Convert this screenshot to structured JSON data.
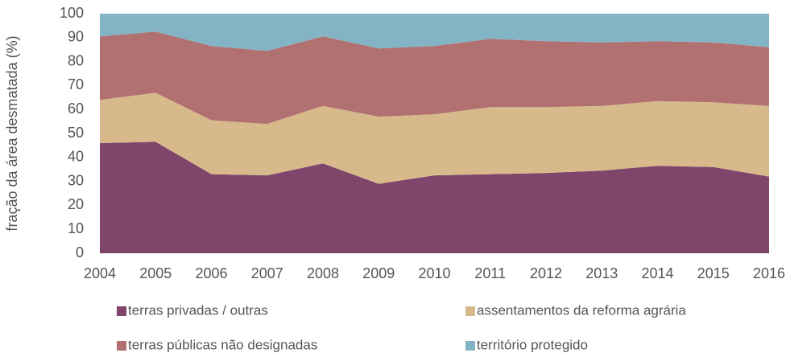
{
  "chart_data": {
    "type": "stacked_area",
    "y_label": "fração da área desmatada (%)",
    "categories": [
      "2004",
      "2005",
      "2006",
      "2007",
      "2008",
      "2009",
      "2010",
      "2011",
      "2012",
      "2013",
      "2014",
      "2015",
      "2016"
    ],
    "ylim": [
      0,
      100
    ],
    "yticks": [
      0,
      10,
      20,
      30,
      40,
      50,
      60,
      70,
      80,
      90,
      100
    ],
    "series": [
      {
        "name": "terras privadas / outras",
        "color": "#7f456b",
        "values": [
          46,
          46.5,
          33,
          32.5,
          37.5,
          29,
          32.5,
          33,
          33.5,
          34.5,
          36.5,
          36,
          32
        ]
      },
      {
        "name": "assentamentos da reforma agrária",
        "color": "#d7b98b",
        "values": [
          18,
          20.5,
          22.5,
          21.5,
          24,
          28,
          25.5,
          28,
          27.5,
          27,
          27,
          27,
          29.5
        ]
      },
      {
        "name": "terras públicas não designadas",
        "color": "#b27171",
        "values": [
          26.5,
          25.5,
          31,
          30.5,
          29,
          28.5,
          28.5,
          28.5,
          27.5,
          26.5,
          25,
          25,
          24.5
        ]
      },
      {
        "name": "território protegido",
        "color": "#83b4c5",
        "values": [
          9.5,
          7.5,
          13.5,
          15.5,
          9.5,
          14.5,
          13.5,
          10.5,
          11.5,
          12,
          11.5,
          12,
          14
        ]
      }
    ]
  }
}
